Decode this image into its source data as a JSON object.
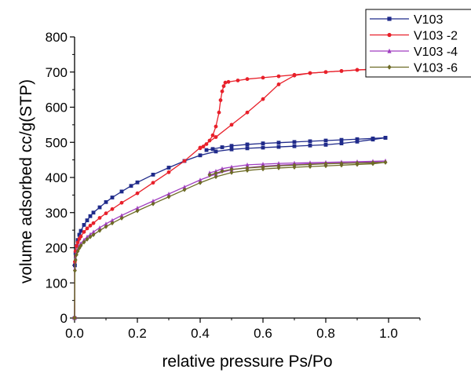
{
  "chart_data": {
    "type": "line",
    "title": "",
    "xlabel": "relative pressure Ps/Po",
    "ylabel": "volume adsorbed cc/g(STP)",
    "xlim": [
      0.0,
      1.0
    ],
    "ylim": [
      0,
      800
    ],
    "x_ticks": [
      "0.0",
      "0.2",
      "0.4",
      "0.6",
      "0.8",
      "1.0"
    ],
    "y_ticks": [
      "0",
      "100",
      "200",
      "300",
      "400",
      "500",
      "600",
      "700",
      "800"
    ],
    "grid": false,
    "legend_position": "top-right",
    "series": [
      {
        "name": "V103",
        "color": "#1f2a8a",
        "marker": "square",
        "adsorption": [
          [
            0.0,
            0
          ],
          [
            0.001,
            150
          ],
          [
            0.003,
            185
          ],
          [
            0.006,
            205
          ],
          [
            0.01,
            222
          ],
          [
            0.015,
            237
          ],
          [
            0.02,
            248
          ],
          [
            0.03,
            265
          ],
          [
            0.04,
            278
          ],
          [
            0.05,
            290
          ],
          [
            0.06,
            300
          ],
          [
            0.08,
            315
          ],
          [
            0.1,
            330
          ],
          [
            0.12,
            343
          ],
          [
            0.15,
            360
          ],
          [
            0.18,
            376
          ],
          [
            0.2,
            386
          ],
          [
            0.25,
            408
          ],
          [
            0.3,
            428
          ],
          [
            0.35,
            447
          ],
          [
            0.4,
            463
          ],
          [
            0.45,
            474
          ],
          [
            0.5,
            480
          ],
          [
            0.55,
            483
          ],
          [
            0.6,
            485
          ],
          [
            0.65,
            487
          ],
          [
            0.7,
            489
          ],
          [
            0.75,
            491
          ],
          [
            0.8,
            493
          ],
          [
            0.85,
            497
          ],
          [
            0.9,
            502
          ],
          [
            0.95,
            508
          ],
          [
            0.99,
            513
          ]
        ],
        "desorption": [
          [
            0.99,
            513
          ],
          [
            0.95,
            511
          ],
          [
            0.9,
            509
          ],
          [
            0.85,
            507
          ],
          [
            0.8,
            505
          ],
          [
            0.75,
            503
          ],
          [
            0.7,
            501
          ],
          [
            0.65,
            499
          ],
          [
            0.6,
            497
          ],
          [
            0.55,
            494
          ],
          [
            0.5,
            490
          ],
          [
            0.47,
            486
          ],
          [
            0.44,
            481
          ],
          [
            0.42,
            478
          ]
        ]
      },
      {
        "name": "V103 -2",
        "color": "#e8202a",
        "marker": "circle",
        "adsorption": [
          [
            0.0,
            0
          ],
          [
            0.001,
            160
          ],
          [
            0.003,
            190
          ],
          [
            0.006,
            205
          ],
          [
            0.01,
            215
          ],
          [
            0.015,
            225
          ],
          [
            0.02,
            232
          ],
          [
            0.03,
            245
          ],
          [
            0.04,
            255
          ],
          [
            0.05,
            263
          ],
          [
            0.06,
            270
          ],
          [
            0.08,
            285
          ],
          [
            0.1,
            298
          ],
          [
            0.12,
            310
          ],
          [
            0.15,
            328
          ],
          [
            0.2,
            355
          ],
          [
            0.25,
            385
          ],
          [
            0.3,
            415
          ],
          [
            0.35,
            447
          ],
          [
            0.4,
            485
          ],
          [
            0.45,
            515
          ],
          [
            0.5,
            550
          ],
          [
            0.55,
            585
          ],
          [
            0.6,
            623
          ],
          [
            0.65,
            665
          ],
          [
            0.7,
            690
          ],
          [
            0.75,
            697
          ],
          [
            0.8,
            700
          ],
          [
            0.85,
            703
          ],
          [
            0.9,
            706
          ],
          [
            0.95,
            708
          ],
          [
            0.99,
            710
          ]
        ],
        "desorption": [
          [
            0.99,
            710
          ],
          [
            0.95,
            708
          ],
          [
            0.9,
            706
          ],
          [
            0.85,
            703
          ],
          [
            0.8,
            700
          ],
          [
            0.75,
            697
          ],
          [
            0.7,
            692
          ],
          [
            0.65,
            688
          ],
          [
            0.6,
            684
          ],
          [
            0.55,
            680
          ],
          [
            0.52,
            676
          ],
          [
            0.49,
            672
          ],
          [
            0.48,
            670
          ],
          [
            0.475,
            660
          ],
          [
            0.47,
            645
          ],
          [
            0.465,
            620
          ],
          [
            0.46,
            585
          ],
          [
            0.45,
            545
          ],
          [
            0.44,
            520
          ],
          [
            0.43,
            505
          ],
          [
            0.42,
            495
          ],
          [
            0.41,
            488
          ],
          [
            0.4,
            483
          ]
        ]
      },
      {
        "name": "V103 -4",
        "color": "#a03ec0",
        "marker": "triangle",
        "adsorption": [
          [
            0.0,
            0
          ],
          [
            0.001,
            140
          ],
          [
            0.003,
            170
          ],
          [
            0.006,
            185
          ],
          [
            0.01,
            195
          ],
          [
            0.015,
            205
          ],
          [
            0.02,
            212
          ],
          [
            0.03,
            222
          ],
          [
            0.04,
            231
          ],
          [
            0.05,
            238
          ],
          [
            0.06,
            245
          ],
          [
            0.08,
            257
          ],
          [
            0.1,
            268
          ],
          [
            0.12,
            278
          ],
          [
            0.15,
            292
          ],
          [
            0.2,
            313
          ],
          [
            0.25,
            333
          ],
          [
            0.3,
            353
          ],
          [
            0.35,
            373
          ],
          [
            0.4,
            393
          ],
          [
            0.45,
            410
          ],
          [
            0.5,
            422
          ],
          [
            0.55,
            428
          ],
          [
            0.6,
            432
          ],
          [
            0.65,
            435
          ],
          [
            0.7,
            437
          ],
          [
            0.75,
            439
          ],
          [
            0.8,
            440
          ],
          [
            0.85,
            441
          ],
          [
            0.9,
            442
          ],
          [
            0.95,
            444
          ],
          [
            0.99,
            447
          ]
        ],
        "desorption": [
          [
            0.99,
            447
          ],
          [
            0.95,
            446
          ],
          [
            0.9,
            445
          ],
          [
            0.85,
            444
          ],
          [
            0.8,
            443
          ],
          [
            0.75,
            442
          ],
          [
            0.7,
            441
          ],
          [
            0.65,
            440
          ],
          [
            0.6,
            438
          ],
          [
            0.55,
            436
          ],
          [
            0.5,
            430
          ],
          [
            0.47,
            425
          ],
          [
            0.45,
            418
          ],
          [
            0.43,
            413
          ]
        ]
      },
      {
        "name": "V103 -6",
        "color": "#6d6b25",
        "marker": "diamond",
        "adsorption": [
          [
            0.0,
            0
          ],
          [
            0.001,
            135
          ],
          [
            0.003,
            165
          ],
          [
            0.006,
            180
          ],
          [
            0.01,
            190
          ],
          [
            0.015,
            199
          ],
          [
            0.02,
            206
          ],
          [
            0.03,
            216
          ],
          [
            0.04,
            224
          ],
          [
            0.05,
            231
          ],
          [
            0.06,
            237
          ],
          [
            0.08,
            249
          ],
          [
            0.1,
            260
          ],
          [
            0.12,
            270
          ],
          [
            0.15,
            284
          ],
          [
            0.2,
            305
          ],
          [
            0.25,
            325
          ],
          [
            0.3,
            345
          ],
          [
            0.35,
            365
          ],
          [
            0.4,
            385
          ],
          [
            0.45,
            402
          ],
          [
            0.5,
            414
          ],
          [
            0.55,
            420
          ],
          [
            0.6,
            424
          ],
          [
            0.65,
            427
          ],
          [
            0.7,
            429
          ],
          [
            0.75,
            431
          ],
          [
            0.8,
            433
          ],
          [
            0.85,
            435
          ],
          [
            0.9,
            437
          ],
          [
            0.95,
            439
          ],
          [
            0.99,
            443
          ]
        ],
        "desorption": [
          [
            0.99,
            443
          ],
          [
            0.95,
            442
          ],
          [
            0.9,
            441
          ],
          [
            0.85,
            440
          ],
          [
            0.8,
            439
          ],
          [
            0.75,
            437
          ],
          [
            0.7,
            435
          ],
          [
            0.65,
            433
          ],
          [
            0.6,
            430
          ],
          [
            0.55,
            427
          ],
          [
            0.5,
            423
          ],
          [
            0.47,
            418
          ],
          [
            0.45,
            412
          ],
          [
            0.43,
            407
          ]
        ]
      }
    ]
  }
}
